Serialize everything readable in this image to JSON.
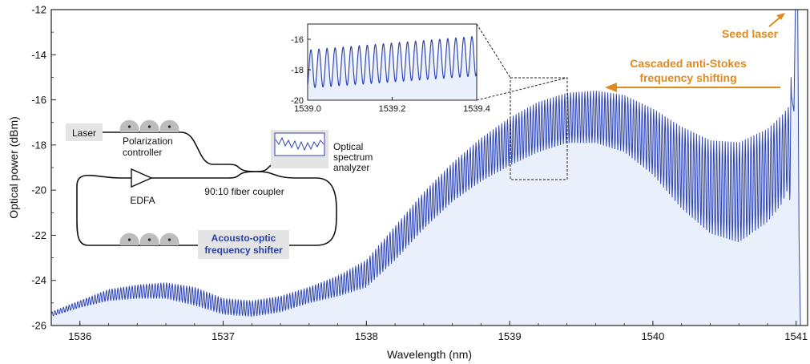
{
  "colors": {
    "trace": "#2f45b5",
    "fill": "#e9f0fb",
    "accent": "#e08a1e",
    "diagram_blue": "#2a3fa8"
  },
  "chart_data": {
    "type": "line",
    "xlabel": "Wavelength (nm)",
    "ylabel": "Optical power (dBm)",
    "xlim": [
      1535.8,
      1541.08
    ],
    "ylim": [
      -26,
      -12
    ],
    "x_ticks": [
      "1536",
      "1537",
      "1538",
      "1539",
      "1540",
      "1541"
    ],
    "y_ticks": [
      "-12",
      "-14",
      "-16",
      "-18",
      "-20",
      "-22",
      "-24",
      "-26"
    ],
    "grid": false,
    "series": [
      {
        "name": "",
        "x": [
          1535.8,
          1536.0,
          1536.2,
          1536.4,
          1536.6,
          1536.8,
          1537.0,
          1537.2,
          1537.4,
          1537.6,
          1537.8,
          1538.0,
          1538.2,
          1538.4,
          1538.6,
          1538.8,
          1539.0,
          1539.2,
          1539.4,
          1539.6,
          1539.8,
          1540.0,
          1540.2,
          1540.4,
          1540.6,
          1540.8,
          1540.9,
          1540.95,
          1541.0
        ],
        "upper": [
          -25.4,
          -24.9,
          -24.4,
          -24.2,
          -24.1,
          -24.3,
          -24.8,
          -24.9,
          -24.7,
          -24.3,
          -23.8,
          -23.1,
          -21.6,
          -20.1,
          -18.8,
          -17.7,
          -16.8,
          -16.1,
          -15.7,
          -15.6,
          -15.8,
          -16.4,
          -17.2,
          -17.8,
          -17.9,
          -17.3,
          -16.7,
          -16.3,
          -12.0
        ],
        "lower": [
          -25.6,
          -25.2,
          -24.9,
          -24.8,
          -24.8,
          -25.1,
          -25.5,
          -25.6,
          -25.4,
          -25.0,
          -24.7,
          -24.3,
          -23.1,
          -21.7,
          -20.5,
          -19.6,
          -18.9,
          -18.3,
          -17.9,
          -17.9,
          -18.3,
          -19.3,
          -20.8,
          -21.9,
          -22.3,
          -21.4,
          -20.6,
          -19.8,
          -26.0
        ],
        "peak": {
          "x": 1541.0,
          "y": -12.0
        }
      }
    ],
    "inset": {
      "xlim": [
        1539.0,
        1539.4
      ],
      "ylim": [
        -20,
        -15
      ],
      "x_ticks": [
        "1539.0",
        "1539.2",
        "1539.4"
      ],
      "y_ticks": [
        "-16",
        "-18",
        "-20"
      ],
      "oscillation": {
        "cycles": 21,
        "upper_start": -16.7,
        "upper_end": -15.8,
        "lower_start": -19.2,
        "lower_end": -18.4
      }
    },
    "annotations": {
      "seed": "Seed laser",
      "cascade_line1": "Cascaded anti-Stokes",
      "cascade_line2": "frequency shifting"
    }
  },
  "diagram": {
    "laser": "Laser",
    "polarization_line1": "Polarization",
    "polarization_line2": "controller",
    "osa_line1": "Optical",
    "osa_line2": "spectrum",
    "osa_line3": "analyzer",
    "edfa": "EDFA",
    "coupler": "90:10 fiber coupler",
    "aofs_line1": "Acousto-optic",
    "aofs_line2": "frequency shifter"
  }
}
